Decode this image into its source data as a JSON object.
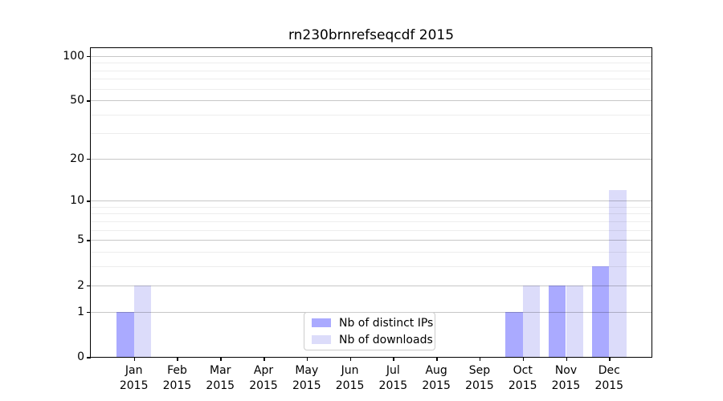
{
  "chart_data": {
    "type": "bar",
    "title": "rn230brnrefseqcdf 2015",
    "categories": [
      "Jan",
      "Feb",
      "Mar",
      "Apr",
      "May",
      "Jun",
      "Jul",
      "Aug",
      "Sep",
      "Oct",
      "Nov",
      "Dec"
    ],
    "x_year": "2015",
    "series": [
      {
        "name": "Nb of distinct IPs",
        "color": "#aaaaff",
        "values": [
          1,
          0,
          0,
          0,
          0,
          0,
          0,
          0,
          0,
          1,
          2,
          3
        ]
      },
      {
        "name": "Nb of downloads",
        "color": "#dcdcfa",
        "values": [
          2,
          0,
          0,
          0,
          0,
          0,
          0,
          0,
          0,
          2,
          2,
          12
        ]
      }
    ],
    "y_axis": {
      "scale": "log1p",
      "tick_labels": [
        0,
        1,
        2,
        5,
        10,
        20,
        50,
        100
      ],
      "minor_ticks": [
        3,
        4,
        6,
        7,
        8,
        9,
        30,
        40,
        60,
        70,
        80,
        90
      ],
      "ylim": [
        0,
        113
      ]
    },
    "xlabel": "",
    "ylabel": "",
    "grid": "both",
    "legend_position": "lower center"
  }
}
